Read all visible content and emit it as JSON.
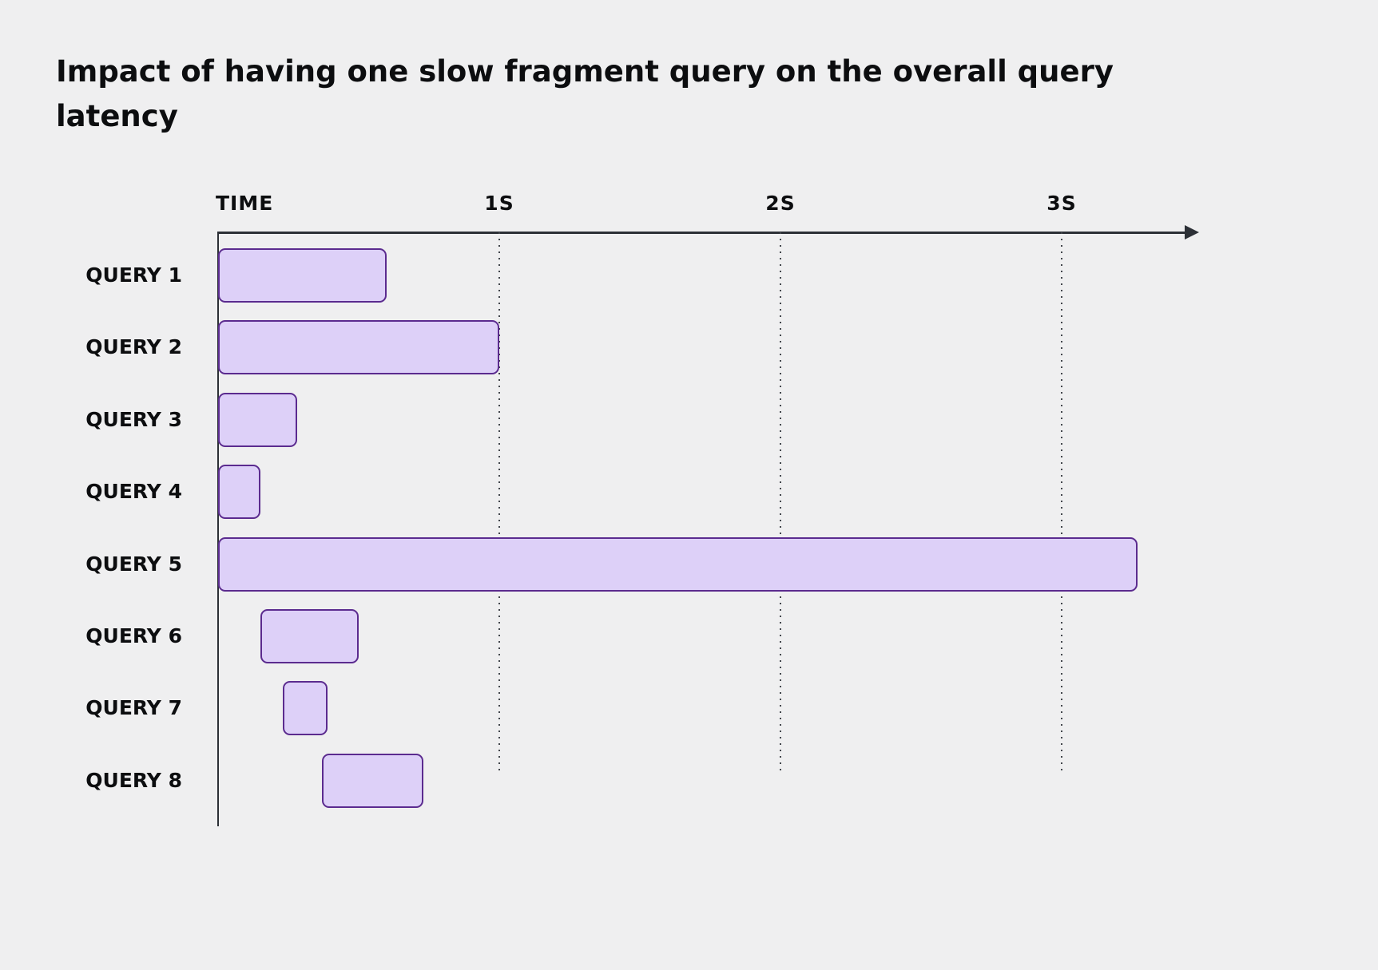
{
  "page": {
    "background": "#efeff0"
  },
  "title": "Impact of having one slow fragment query on the overall query latency",
  "chart_data": {
    "type": "bar",
    "subtype": "horizontal-gantt",
    "title": "Impact of having one slow fragment query on the overall query latency",
    "xlabel": "TIME",
    "unit": "seconds",
    "xlim": [
      0,
      3.5
    ],
    "grid": "dotted-vertical",
    "axis": {
      "label": "TIME",
      "ticks": [
        {
          "label": "1S",
          "value": 1
        },
        {
          "label": "2S",
          "value": 2
        },
        {
          "label": "3S",
          "value": 3
        }
      ]
    },
    "bars": [
      {
        "label": "QUERY 1",
        "start_s": 0,
        "end_s": 0.6
      },
      {
        "label": "QUERY 2",
        "start_s": 0,
        "end_s": 1.0
      },
      {
        "label": "QUERY 3",
        "start_s": 0,
        "end_s": 0.28
      },
      {
        "label": "QUERY 4",
        "start_s": 0,
        "end_s": 0.15
      },
      {
        "label": "QUERY 5",
        "start_s": 0,
        "end_s": 3.27
      },
      {
        "label": "QUERY 6",
        "start_s": 0.15,
        "end_s": 0.5
      },
      {
        "label": "QUERY 7",
        "start_s": 0.23,
        "end_s": 0.39
      },
      {
        "label": "QUERY 8",
        "start_s": 0.37,
        "end_s": 0.73
      }
    ],
    "colors": {
      "bar_fill": "#ddd0f8",
      "bar_border": "#5b2b8f",
      "axis": "#2c3036",
      "text": "#0c0d0f",
      "background": "#efeff0"
    }
  }
}
